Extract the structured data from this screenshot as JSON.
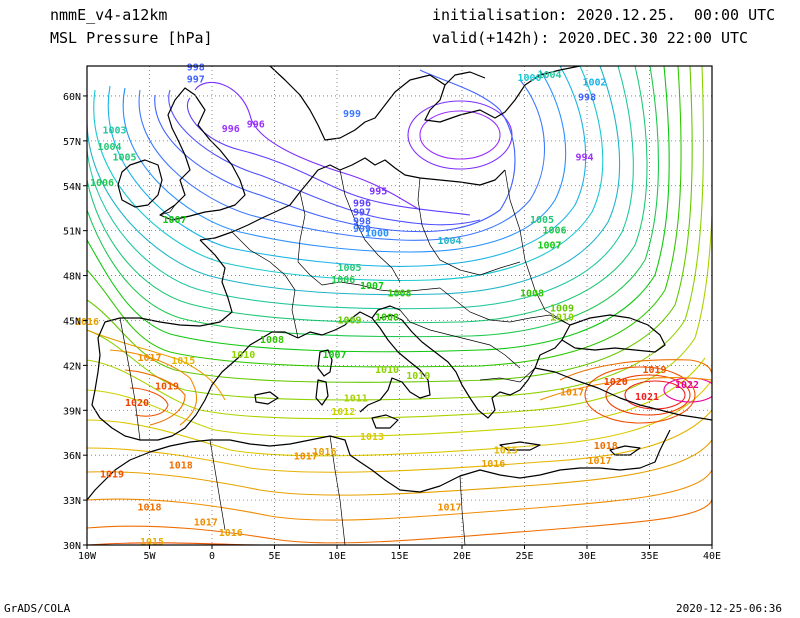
{
  "header": {
    "model": "nmmE_v4-a12km",
    "field": "MSL Pressure [hPa]",
    "init_line": "initialisation: 2020.12.25.  00:00 UTC",
    "valid_line": "valid(+142h): 2020.DEC.30 22:00 UTC"
  },
  "footer": {
    "left": "GrADS/COLA",
    "right": "2020-12-25-06:36"
  },
  "axes": {
    "lon_ticks": [
      "10W",
      "5W",
      "0",
      "5E",
      "10E",
      "15E",
      "20E",
      "25E",
      "30E",
      "35E",
      "40E"
    ],
    "lat_ticks": [
      "60N",
      "57N",
      "54N",
      "51N",
      "48N",
      "45N",
      "42N",
      "39N",
      "36N",
      "33N",
      "30N"
    ],
    "lon_range": [
      -10,
      40
    ],
    "lat_range": [
      30,
      62
    ]
  },
  "isobar_labels": [
    {
      "text": "998",
      "lon": -1.3,
      "lat": 61.7,
      "color": "#4060ff"
    },
    {
      "text": "997",
      "lon": -1.3,
      "lat": 60.9,
      "color": "#4060ff"
    },
    {
      "text": "996",
      "lon": 1.5,
      "lat": 57.6,
      "color": "#9b30ff"
    },
    {
      "text": "996",
      "lon": 3.5,
      "lat": 57.9,
      "color": "#9b30ff"
    },
    {
      "text": "1000",
      "lon": 25.4,
      "lat": 61.0,
      "color": "#19c8d0"
    },
    {
      "text": "1004",
      "lon": 27.0,
      "lat": 61.2,
      "color": "#23c8a0"
    },
    {
      "text": "1002",
      "lon": 30.6,
      "lat": 60.7,
      "color": "#19b4e6"
    },
    {
      "text": "998",
      "lon": 30.0,
      "lat": 59.7,
      "color": "#4060ff"
    },
    {
      "text": "999",
      "lon": 11.2,
      "lat": 58.6,
      "color": "#3c78ff"
    },
    {
      "text": "994",
      "lon": 29.8,
      "lat": 55.7,
      "color": "#9b30ff"
    },
    {
      "text": "995",
      "lon": 13.3,
      "lat": 53.4,
      "color": "#7d2dff"
    },
    {
      "text": "996",
      "lon": 12.0,
      "lat": 52.6,
      "color": "#6040ff"
    },
    {
      "text": "997",
      "lon": 12.0,
      "lat": 52.0,
      "color": "#5050ff"
    },
    {
      "text": "998",
      "lon": 12.0,
      "lat": 51.4,
      "color": "#4060ff"
    },
    {
      "text": "999",
      "lon": 12.0,
      "lat": 50.9,
      "color": "#3c78ff"
    },
    {
      "text": "1000",
      "lon": 13.2,
      "lat": 50.6,
      "color": "#2890ff"
    },
    {
      "text": "1004",
      "lon": 19.0,
      "lat": 50.1,
      "color": "#20b4c8"
    },
    {
      "text": "1005",
      "lon": 26.4,
      "lat": 51.5,
      "color": "#21c878"
    },
    {
      "text": "1006",
      "lon": 27.4,
      "lat": 50.8,
      "color": "#20c850"
    },
    {
      "text": "1007",
      "lon": 27.0,
      "lat": 49.8,
      "color": "#10c810"
    },
    {
      "text": "1003",
      "lon": -7.8,
      "lat": 57.5,
      "color": "#23c8a0"
    },
    {
      "text": "1004",
      "lon": -8.2,
      "lat": 56.4,
      "color": "#21c878"
    },
    {
      "text": "1005",
      "lon": -7.0,
      "lat": 55.7,
      "color": "#21c878"
    },
    {
      "text": "1006",
      "lon": -8.8,
      "lat": 54.0,
      "color": "#20c850"
    },
    {
      "text": "1007",
      "lon": -3.0,
      "lat": 51.5,
      "color": "#10c810"
    },
    {
      "text": "1005",
      "lon": 11.0,
      "lat": 48.3,
      "color": "#21c878"
    },
    {
      "text": "1006",
      "lon": 10.5,
      "lat": 47.5,
      "color": "#20c850"
    },
    {
      "text": "1007",
      "lon": 12.8,
      "lat": 47.1,
      "color": "#10c810"
    },
    {
      "text": "1008",
      "lon": 15.0,
      "lat": 46.6,
      "color": "#30c800"
    },
    {
      "text": "1008",
      "lon": 14.0,
      "lat": 45.0,
      "color": "#30c800"
    },
    {
      "text": "1009",
      "lon": 11.0,
      "lat": 44.8,
      "color": "#64c800"
    },
    {
      "text": "1008",
      "lon": 25.6,
      "lat": 46.6,
      "color": "#30c800"
    },
    {
      "text": "1009",
      "lon": 28.0,
      "lat": 45.6,
      "color": "#64c800"
    },
    {
      "text": "1010",
      "lon": 28.0,
      "lat": 45.0,
      "color": "#8cd200"
    },
    {
      "text": "1008",
      "lon": 4.8,
      "lat": 43.5,
      "color": "#30c800"
    },
    {
      "text": "1007",
      "lon": 9.8,
      "lat": 42.5,
      "color": "#10c810"
    },
    {
      "text": "1010",
      "lon": 2.5,
      "lat": 42.5,
      "color": "#8cd200"
    },
    {
      "text": "1010",
      "lon": 14.0,
      "lat": 41.5,
      "color": "#8cd200"
    },
    {
      "text": "1010",
      "lon": 16.5,
      "lat": 41.1,
      "color": "#8cd200"
    },
    {
      "text": "1011",
      "lon": 11.5,
      "lat": 39.6,
      "color": "#aad200"
    },
    {
      "text": "1012",
      "lon": 10.5,
      "lat": 38.7,
      "color": "#c8d200"
    },
    {
      "text": "1013",
      "lon": 12.8,
      "lat": 37.0,
      "color": "#dcc800"
    },
    {
      "text": "1016",
      "lon": -10.0,
      "lat": 44.7,
      "color": "#e6a000"
    },
    {
      "text": "1017",
      "lon": -5.0,
      "lat": 42.3,
      "color": "#f08c00"
    },
    {
      "text": "1015",
      "lon": -2.3,
      "lat": 42.1,
      "color": "#e6b400"
    },
    {
      "text": "1019",
      "lon": -3.6,
      "lat": 40.4,
      "color": "#f05000"
    },
    {
      "text": "1020",
      "lon": -6.0,
      "lat": 39.3,
      "color": "#f03c00"
    },
    {
      "text": "1016",
      "lon": 9.0,
      "lat": 36.0,
      "color": "#e6a000"
    },
    {
      "text": "1017",
      "lon": 7.5,
      "lat": 35.7,
      "color": "#f08c00"
    },
    {
      "text": "1019",
      "lon": -8.0,
      "lat": 34.5,
      "color": "#f05000"
    },
    {
      "text": "1018",
      "lon": -2.5,
      "lat": 35.1,
      "color": "#f06e00"
    },
    {
      "text": "1018",
      "lon": -5.0,
      "lat": 32.3,
      "color": "#f06e00"
    },
    {
      "text": "1017",
      "lon": -0.5,
      "lat": 31.3,
      "color": "#f08c00"
    },
    {
      "text": "1016",
      "lon": 1.5,
      "lat": 30.6,
      "color": "#e6a000"
    },
    {
      "text": "1015",
      "lon": -4.8,
      "lat": 30.0,
      "color": "#e6b400"
    },
    {
      "text": "1015",
      "lon": 23.5,
      "lat": 36.1,
      "color": "#e6b400"
    },
    {
      "text": "1016",
      "lon": 22.5,
      "lat": 35.2,
      "color": "#e6a000"
    },
    {
      "text": "1017",
      "lon": 19.0,
      "lat": 32.3,
      "color": "#f08c00"
    },
    {
      "text": "1017",
      "lon": 28.8,
      "lat": 40.0,
      "color": "#f08c00"
    },
    {
      "text": "1020",
      "lon": 32.3,
      "lat": 40.7,
      "color": "#f03c00"
    },
    {
      "text": "1021",
      "lon": 34.8,
      "lat": 39.7,
      "color": "#f01e1e"
    },
    {
      "text": "1019",
      "lon": 35.4,
      "lat": 41.5,
      "color": "#f05000"
    },
    {
      "text": "1022",
      "lon": 38.0,
      "lat": 40.5,
      "color": "#e6009b"
    },
    {
      "text": "1018",
      "lon": 31.5,
      "lat": 36.4,
      "color": "#f06e00"
    },
    {
      "text": "1017",
      "lon": 31.0,
      "lat": 35.4,
      "color": "#f08c00"
    }
  ]
}
